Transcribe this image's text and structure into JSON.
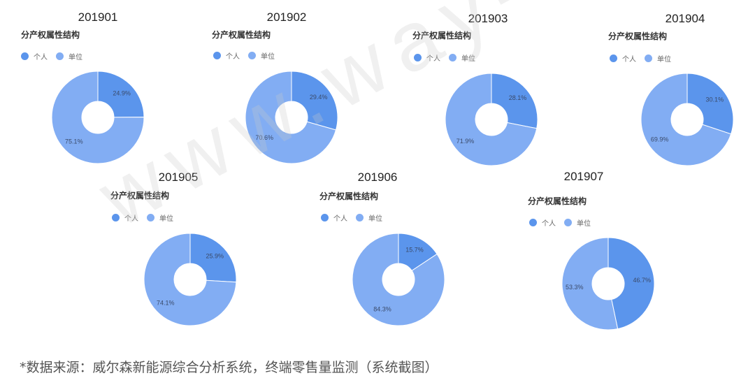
{
  "watermark": "www.way-s.cn",
  "footer": "*数据来源：威尔森新能源综合分析系统，终端零售量监测（系统截图）",
  "chart_data": [
    {
      "type": "pie",
      "donut": true,
      "period": "201901",
      "title": "分产权属性结构",
      "categories": [
        "个人",
        "单位"
      ],
      "values": [
        24.9,
        75.1
      ],
      "labels": [
        "24.9%",
        "75.1%"
      ],
      "colors": [
        "#5b95ec",
        "#82adf3"
      ],
      "legend": "top-left"
    },
    {
      "type": "pie",
      "donut": true,
      "period": "201902",
      "title": "分产权属性结构",
      "categories": [
        "个人",
        "单位"
      ],
      "values": [
        29.4,
        70.6
      ],
      "labels": [
        "29.4%",
        "70.6%"
      ],
      "colors": [
        "#5b95ec",
        "#82adf3"
      ],
      "legend": "top-left"
    },
    {
      "type": "pie",
      "donut": true,
      "period": "201903",
      "title": "分产权属性结构",
      "categories": [
        "个人",
        "单位"
      ],
      "values": [
        28.1,
        71.9
      ],
      "labels": [
        "28.1%",
        "71.9%"
      ],
      "colors": [
        "#5b95ec",
        "#82adf3"
      ],
      "legend": "top-left"
    },
    {
      "type": "pie",
      "donut": true,
      "period": "201904",
      "title": "分产权属性结构",
      "categories": [
        "个人",
        "单位"
      ],
      "values": [
        30.1,
        69.9
      ],
      "labels": [
        "30.1%",
        "69.9%"
      ],
      "colors": [
        "#5b95ec",
        "#82adf3"
      ],
      "legend": "top-left"
    },
    {
      "type": "pie",
      "donut": true,
      "period": "201905",
      "title": "分产权属性结构",
      "categories": [
        "个人",
        "单位"
      ],
      "values": [
        25.9,
        74.1
      ],
      "labels": [
        "25.9%",
        "74.1%"
      ],
      "colors": [
        "#5b95ec",
        "#82adf3"
      ],
      "legend": "top-left"
    },
    {
      "type": "pie",
      "donut": true,
      "period": "201906",
      "title": "分产权属性结构",
      "categories": [
        "个人",
        "单位"
      ],
      "values": [
        15.7,
        84.3
      ],
      "labels": [
        "15.7%",
        "84.3%"
      ],
      "colors": [
        "#5b95ec",
        "#82adf3"
      ],
      "legend": "top-left"
    },
    {
      "type": "pie",
      "donut": true,
      "period": "201907",
      "title": "分产权属性结构",
      "categories": [
        "个人",
        "单位"
      ],
      "values": [
        46.7,
        53.3
      ],
      "labels": [
        "46.7%",
        "53.3%"
      ],
      "colors": [
        "#5b95ec",
        "#82adf3"
      ],
      "legend": "top-left"
    }
  ]
}
